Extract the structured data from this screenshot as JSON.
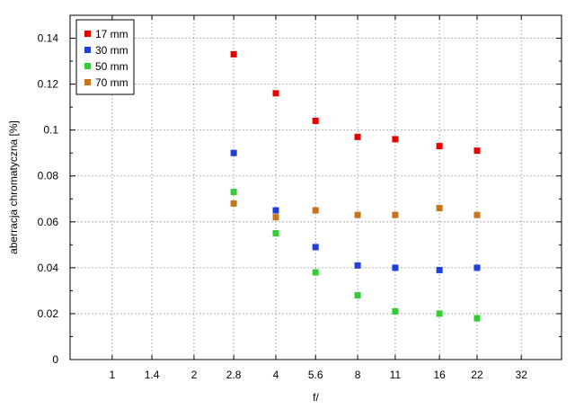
{
  "chart_data": {
    "type": "scatter",
    "title": "",
    "xlabel": "f/",
    "ylabel": "aberracja chromatyczna [%]",
    "x_scale": "log",
    "x_ticks": [
      "1",
      "1.4",
      "2",
      "2.8",
      "4",
      "5.6",
      "8",
      "11",
      "16",
      "22",
      "32"
    ],
    "xlim": [
      0.7,
      45
    ],
    "ylim": [
      0,
      0.15
    ],
    "y_ticks": [
      "0",
      "0.02",
      "0.04",
      "0.06",
      "0.08",
      "0.1",
      "0.12",
      "0.14"
    ],
    "grid": true,
    "legend_position": "top-left",
    "x": [
      2.8,
      4,
      5.6,
      8,
      11,
      16,
      22
    ],
    "series": [
      {
        "name": "17 mm",
        "color": "#e60000",
        "values": [
          0.133,
          0.116,
          0.104,
          0.097,
          0.096,
          0.093,
          0.091
        ]
      },
      {
        "name": "30 mm",
        "color": "#1f3fd6",
        "values": [
          0.09,
          0.065,
          0.049,
          0.041,
          0.04,
          0.039,
          0.04
        ]
      },
      {
        "name": "50 mm",
        "color": "#33cc33",
        "values": [
          0.073,
          0.055,
          0.038,
          0.028,
          0.021,
          0.02,
          0.018
        ]
      },
      {
        "name": "70 mm",
        "color": "#c8741f",
        "values": [
          0.068,
          0.062,
          0.065,
          0.063,
          0.063,
          0.066,
          0.063
        ]
      }
    ]
  }
}
